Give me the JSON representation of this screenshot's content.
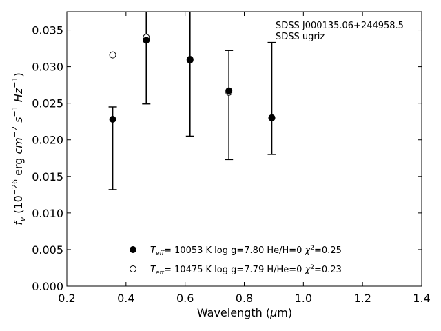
{
  "chart_data": {
    "type": "scatter",
    "title": "",
    "xlabel": "Wavelength (μm)",
    "ylabel": "fν (10⁻²⁶ erg cm⁻² s⁻¹ Hz⁻¹)",
    "xlim": [
      0.2,
      1.4
    ],
    "ylim": [
      0.0,
      0.0375
    ],
    "xticks": [
      "0.2",
      "0.4",
      "0.6",
      "0.8",
      "1.0",
      "1.2",
      "1.4"
    ],
    "yticks": [
      "0.000",
      "0.005",
      "0.010",
      "0.015",
      "0.020",
      "0.025",
      "0.030",
      "0.035"
    ],
    "xtick_values": [
      0.2,
      0.4,
      0.6,
      0.8,
      1.0,
      1.2,
      1.4
    ],
    "ytick_values": [
      0.0,
      0.005,
      0.01,
      0.015,
      0.02,
      0.025,
      0.03,
      0.035
    ],
    "grid": false,
    "legend_position": "bottom-center",
    "annotations": [
      "SDSS J000135.06+244958.5",
      "SDSS ugriz"
    ],
    "observed": {
      "name": "",
      "x": [
        0.3551,
        0.4686,
        0.6166,
        0.748,
        0.8932
      ],
      "y": [
        0.0228,
        0.0336,
        0.0309,
        0.0267,
        0.023
      ],
      "yerr": [
        0.0096,
        0.0087,
        0.0104,
        0.0054,
        0.0104
      ],
      "err_lower": [
        0.0132,
        0.0249,
        0.0205,
        0.0173,
        0.018
      ],
      "err_upper": [
        0.0245,
        0.0375,
        0.0375,
        0.0322,
        0.0333
      ]
    },
    "series": [
      {
        "name": "T_eff= 10053 K  log g=7.80  He/H=0  χ²=0.25",
        "marker": "filled-circle",
        "x": [
          0.3551,
          0.4686,
          0.6166,
          0.748,
          0.8932
        ],
        "y": [
          0.0228,
          0.0336,
          0.0309,
          0.0267,
          0.023
        ]
      },
      {
        "name": "T_eff= 10475 K  log g=7.79  H/He=0  χ²=0.23",
        "marker": "open-circle",
        "x": [
          0.3551,
          0.4686,
          0.6166,
          0.748,
          0.8932
        ],
        "y": [
          0.0316,
          0.034,
          0.031,
          0.0265,
          0.023
        ]
      }
    ],
    "legend": [
      {
        "marker": "filled-circle",
        "teff_value": "= 10053 K  log g=7.80  He/H=0  ",
        "chi_value": "=0.25"
      },
      {
        "marker": "open-circle",
        "teff_value": "= 10475 K  log g=7.79  H/He=0  ",
        "chi_value": "=0.23"
      }
    ]
  }
}
